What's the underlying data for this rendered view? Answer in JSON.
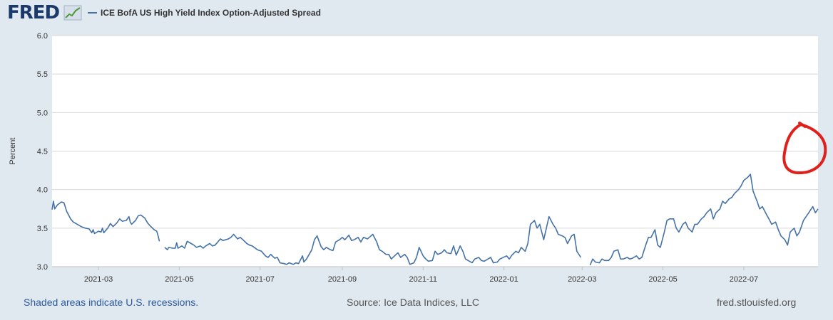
{
  "header": {
    "logo": "FRED",
    "legend_label": "ICE BofA US High Yield Index Option-Adjusted Spread"
  },
  "footer": {
    "recession_note": "Shaded areas indicate U.S. recessions.",
    "source": "Source: Ice Data Indices, LLC",
    "site": "fred.stlouisfed.org"
  },
  "colors": {
    "series": "#4572a7",
    "annotation": "#e0201b",
    "background": "#e1e9f0",
    "plot": "#ffffff"
  },
  "chart_data": {
    "type": "line",
    "ylabel": "Percent",
    "ylim": [
      3.0,
      6.0
    ],
    "yticks": [
      "3.0",
      "3.5",
      "4.0",
      "4.5",
      "5.0",
      "5.5",
      "6.0"
    ],
    "xlim": [
      "2021-01-25",
      "2022-08-26"
    ],
    "xticks": [
      "2021-03",
      "2021-05",
      "2021-07",
      "2021-09",
      "2021-11",
      "2022-01",
      "2022-03",
      "2022-05",
      "2022-07"
    ],
    "grid": "horizontal",
    "legend": "top-left",
    "series": [
      {
        "name": "ICE BofA US High Yield Index Option-Adjusted Spread",
        "points": [
          [
            "2021-01-25",
            3.74
          ],
          [
            "2021-01-26",
            3.85
          ],
          [
            "2021-01-27",
            3.75
          ],
          [
            "2021-01-29",
            3.8
          ],
          [
            "2021-02-01",
            3.84
          ],
          [
            "2021-02-03",
            3.83
          ],
          [
            "2021-02-05",
            3.72
          ],
          [
            "2021-02-08",
            3.62
          ],
          [
            "2021-02-10",
            3.58
          ],
          [
            "2021-02-12",
            3.56
          ],
          [
            "2021-02-16",
            3.52
          ],
          [
            "2021-02-19",
            3.5
          ],
          [
            "2021-02-22",
            3.49
          ],
          [
            "2021-02-24",
            3.44
          ],
          [
            "2021-02-25",
            3.48
          ],
          [
            "2021-02-26",
            3.43
          ],
          [
            "2021-03-01",
            3.46
          ],
          [
            "2021-03-03",
            3.45
          ],
          [
            "2021-03-04",
            3.5
          ],
          [
            "2021-03-05",
            3.44
          ],
          [
            "2021-03-08",
            3.5
          ],
          [
            "2021-03-10",
            3.56
          ],
          [
            "2021-03-12",
            3.52
          ],
          [
            "2021-03-15",
            3.57
          ],
          [
            "2021-03-17",
            3.62
          ],
          [
            "2021-03-19",
            3.59
          ],
          [
            "2021-03-22",
            3.6
          ],
          [
            "2021-03-24",
            3.65
          ],
          [
            "2021-03-25",
            3.58
          ],
          [
            "2021-03-26",
            3.55
          ],
          [
            "2021-03-29",
            3.6
          ],
          [
            "2021-03-31",
            3.66
          ],
          [
            "2021-04-02",
            3.67
          ],
          [
            "2021-04-05",
            3.63
          ],
          [
            "2021-04-07",
            3.57
          ],
          [
            "2021-04-09",
            3.53
          ],
          [
            "2021-04-12",
            3.48
          ],
          [
            "2021-04-14",
            3.46
          ],
          [
            "2021-04-15",
            3.4
          ],
          [
            "2021-04-16",
            3.33
          ],
          null,
          [
            "2021-04-20",
            3.25
          ],
          [
            "2021-04-22",
            3.22
          ],
          [
            "2021-04-23",
            3.25
          ],
          [
            "2021-04-26",
            3.24
          ],
          [
            "2021-04-28",
            3.24
          ],
          [
            "2021-04-29",
            3.31
          ],
          [
            "2021-04-30",
            3.24
          ],
          [
            "2021-05-03",
            3.27
          ],
          [
            "2021-05-05",
            3.24
          ],
          [
            "2021-05-07",
            3.33
          ],
          [
            "2021-05-10",
            3.3
          ],
          [
            "2021-05-12",
            3.28
          ],
          [
            "2021-05-14",
            3.25
          ],
          [
            "2021-05-17",
            3.27
          ],
          [
            "2021-05-19",
            3.24
          ],
          [
            "2021-05-21",
            3.27
          ],
          [
            "2021-05-24",
            3.3
          ],
          [
            "2021-05-26",
            3.27
          ],
          [
            "2021-05-28",
            3.28
          ],
          [
            "2021-06-01",
            3.36
          ],
          [
            "2021-06-03",
            3.34
          ],
          [
            "2021-06-07",
            3.36
          ],
          [
            "2021-06-09",
            3.38
          ],
          [
            "2021-06-11",
            3.42
          ],
          [
            "2021-06-14",
            3.36
          ],
          [
            "2021-06-16",
            3.38
          ],
          [
            "2021-06-18",
            3.35
          ],
          [
            "2021-06-21",
            3.3
          ],
          [
            "2021-06-23",
            3.28
          ],
          [
            "2021-06-25",
            3.27
          ],
          [
            "2021-06-29",
            3.22
          ],
          [
            "2021-07-02",
            3.2
          ],
          [
            "2021-07-05",
            3.14
          ],
          [
            "2021-07-07",
            3.12
          ],
          [
            "2021-07-09",
            3.16
          ],
          [
            "2021-07-12",
            3.11
          ],
          [
            "2021-07-14",
            3.12
          ],
          [
            "2021-07-16",
            3.05
          ],
          [
            "2021-07-19",
            3.04
          ],
          [
            "2021-07-21",
            3.03
          ],
          [
            "2021-07-23",
            3.05
          ],
          [
            "2021-07-26",
            3.03
          ],
          [
            "2021-07-28",
            3.05
          ],
          [
            "2021-07-30",
            3.04
          ],
          [
            "2021-08-02",
            3.14
          ],
          [
            "2021-08-03",
            3.06
          ],
          [
            "2021-08-05",
            3.1
          ],
          [
            "2021-08-09",
            3.22
          ],
          [
            "2021-08-11",
            3.35
          ],
          [
            "2021-08-13",
            3.4
          ],
          [
            "2021-08-16",
            3.26
          ],
          [
            "2021-08-18",
            3.22
          ],
          [
            "2021-08-20",
            3.25
          ],
          [
            "2021-08-23",
            3.22
          ],
          [
            "2021-08-25",
            3.21
          ],
          [
            "2021-08-27",
            3.32
          ],
          [
            "2021-08-30",
            3.35
          ],
          [
            "2021-09-01",
            3.38
          ],
          [
            "2021-09-03",
            3.35
          ],
          [
            "2021-09-06",
            3.41
          ],
          [
            "2021-09-08",
            3.34
          ],
          [
            "2021-09-10",
            3.35
          ],
          [
            "2021-09-13",
            3.38
          ],
          [
            "2021-09-15",
            3.32
          ],
          [
            "2021-09-17",
            3.38
          ],
          [
            "2021-09-20",
            3.36
          ],
          [
            "2021-09-22",
            3.39
          ],
          [
            "2021-09-24",
            3.42
          ],
          [
            "2021-09-27",
            3.32
          ],
          [
            "2021-09-29",
            3.22
          ],
          [
            "2021-10-01",
            3.2
          ],
          [
            "2021-10-04",
            3.16
          ],
          [
            "2021-10-06",
            3.16
          ],
          [
            "2021-10-08",
            3.1
          ],
          [
            "2021-10-11",
            3.15
          ],
          [
            "2021-10-13",
            3.18
          ],
          [
            "2021-10-15",
            3.12
          ],
          [
            "2021-10-18",
            3.16
          ],
          [
            "2021-10-20",
            3.12
          ],
          [
            "2021-10-22",
            3.03
          ],
          [
            "2021-10-25",
            3.05
          ],
          [
            "2021-10-27",
            3.12
          ],
          [
            "2021-10-29",
            3.25
          ],
          [
            "2021-11-01",
            3.14
          ],
          [
            "2021-11-03",
            3.1
          ],
          [
            "2021-11-05",
            3.07
          ],
          [
            "2021-11-08",
            3.08
          ],
          [
            "2021-11-10",
            3.2
          ],
          [
            "2021-11-12",
            3.16
          ],
          [
            "2021-11-15",
            3.18
          ],
          [
            "2021-11-17",
            3.22
          ],
          [
            "2021-11-19",
            3.18
          ],
          [
            "2021-11-22",
            3.17
          ],
          [
            "2021-11-24",
            3.27
          ],
          [
            "2021-11-26",
            3.15
          ],
          [
            "2021-11-29",
            3.27
          ],
          [
            "2021-12-01",
            3.2
          ],
          [
            "2021-12-03",
            3.1
          ],
          [
            "2021-12-06",
            3.07
          ],
          [
            "2021-12-08",
            3.05
          ],
          [
            "2021-12-10",
            3.1
          ],
          [
            "2021-12-13",
            3.12
          ],
          [
            "2021-12-15",
            3.08
          ],
          [
            "2021-12-17",
            3.07
          ],
          [
            "2021-12-20",
            3.1
          ],
          [
            "2021-12-22",
            3.12
          ],
          [
            "2021-12-24",
            3.05
          ],
          [
            "2021-12-27",
            3.06
          ],
          [
            "2021-12-29",
            3.1
          ],
          [
            "2022-01-03",
            3.14
          ],
          [
            "2022-01-05",
            3.1
          ],
          [
            "2022-01-07",
            3.15
          ],
          [
            "2022-01-10",
            3.2
          ],
          [
            "2022-01-12",
            3.18
          ],
          [
            "2022-01-14",
            3.25
          ],
          [
            "2022-01-17",
            3.2
          ],
          [
            "2022-01-19",
            3.3
          ],
          [
            "2022-01-21",
            3.55
          ],
          [
            "2022-01-24",
            3.6
          ],
          [
            "2022-01-26",
            3.5
          ],
          [
            "2022-01-28",
            3.55
          ],
          [
            "2022-01-31",
            3.35
          ],
          [
            "2022-02-02",
            3.5
          ],
          [
            "2022-02-04",
            3.65
          ],
          [
            "2022-02-07",
            3.55
          ],
          [
            "2022-02-09",
            3.5
          ],
          [
            "2022-02-11",
            3.42
          ],
          [
            "2022-02-14",
            3.4
          ],
          [
            "2022-02-16",
            3.38
          ],
          [
            "2022-02-18",
            3.3
          ],
          [
            "2022-02-21",
            3.4
          ],
          [
            "2022-02-23",
            3.42
          ],
          [
            "2022-02-25",
            3.2
          ],
          [
            "2022-02-28",
            3.12
          ],
          null,
          [
            "2022-03-07",
            3.02
          ],
          [
            "2022-03-09",
            3.1
          ],
          [
            "2022-03-11",
            3.06
          ],
          [
            "2022-03-14",
            3.05
          ],
          [
            "2022-03-16",
            3.1
          ],
          [
            "2022-03-18",
            3.08
          ],
          [
            "2022-03-21",
            3.08
          ],
          [
            "2022-03-23",
            3.12
          ],
          [
            "2022-03-25",
            3.2
          ],
          [
            "2022-03-28",
            3.22
          ],
          [
            "2022-03-30",
            3.1
          ],
          [
            "2022-04-01",
            3.1
          ],
          [
            "2022-04-04",
            3.12
          ],
          [
            "2022-04-06",
            3.1
          ],
          [
            "2022-04-08",
            3.11
          ],
          [
            "2022-04-11",
            3.14
          ],
          [
            "2022-04-13",
            3.1
          ],
          [
            "2022-04-15",
            3.12
          ],
          [
            "2022-04-18",
            3.28
          ],
          [
            "2022-04-20",
            3.38
          ],
          [
            "2022-04-22",
            3.38
          ],
          [
            "2022-04-25",
            3.48
          ],
          [
            "2022-04-27",
            3.28
          ],
          [
            "2022-04-29",
            3.25
          ],
          [
            "2022-05-02",
            3.45
          ],
          [
            "2022-05-04",
            3.6
          ],
          [
            "2022-05-06",
            3.62
          ],
          [
            "2022-05-09",
            3.62
          ],
          [
            "2022-05-11",
            3.5
          ],
          [
            "2022-05-13",
            3.45
          ],
          [
            "2022-05-16",
            3.55
          ],
          [
            "2022-05-18",
            3.58
          ],
          [
            "2022-05-20",
            3.5
          ],
          [
            "2022-05-23",
            3.45
          ],
          [
            "2022-05-25",
            3.55
          ],
          [
            "2022-05-27",
            3.55
          ],
          [
            "2022-05-30",
            3.62
          ],
          [
            "2022-06-01",
            3.65
          ],
          [
            "2022-06-03",
            3.7
          ],
          [
            "2022-06-06",
            3.75
          ],
          [
            "2022-06-08",
            3.62
          ],
          [
            "2022-06-10",
            3.7
          ],
          [
            "2022-06-13",
            3.75
          ],
          [
            "2022-06-15",
            3.85
          ],
          [
            "2022-06-17",
            3.82
          ],
          [
            "2022-06-20",
            3.88
          ],
          [
            "2022-06-22",
            3.9
          ],
          [
            "2022-06-24",
            3.95
          ],
          [
            "2022-06-27",
            4.0
          ],
          [
            "2022-06-29",
            4.05
          ],
          [
            "2022-07-01",
            4.12
          ],
          [
            "2022-07-04",
            4.16
          ],
          [
            "2022-07-06",
            4.2
          ],
          [
            "2022-07-08",
            3.98
          ],
          [
            "2022-07-11",
            3.85
          ],
          [
            "2022-07-13",
            3.75
          ],
          [
            "2022-07-15",
            3.78
          ],
          [
            "2022-07-18",
            3.68
          ],
          [
            "2022-07-20",
            3.62
          ],
          [
            "2022-07-22",
            3.55
          ],
          [
            "2022-07-25",
            3.58
          ],
          [
            "2022-07-27",
            3.48
          ],
          [
            "2022-07-29",
            3.4
          ],
          [
            "2022-08-01",
            3.35
          ],
          [
            "2022-08-03",
            3.28
          ],
          [
            "2022-08-05",
            3.45
          ],
          [
            "2022-08-08",
            3.5
          ],
          [
            "2022-08-10",
            3.4
          ],
          [
            "2022-08-12",
            3.45
          ],
          [
            "2022-08-15",
            3.6
          ],
          [
            "2022-08-17",
            3.65
          ],
          [
            "2022-08-19",
            3.7
          ],
          [
            "2022-08-22",
            3.78
          ],
          [
            "2022-08-24",
            3.7
          ],
          [
            "2022-08-26",
            3.75
          ]
        ]
      }
    ]
  }
}
